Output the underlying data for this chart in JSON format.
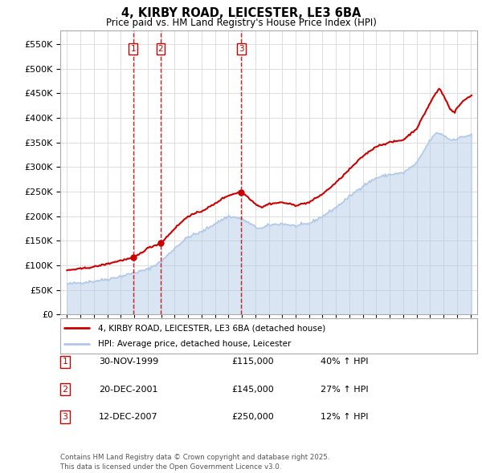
{
  "title": "4, KIRBY ROAD, LEICESTER, LE3 6BA",
  "subtitle": "Price paid vs. HM Land Registry's House Price Index (HPI)",
  "legend_line1": "4, KIRBY ROAD, LEICESTER, LE3 6BA (detached house)",
  "legend_line2": "HPI: Average price, detached house, Leicester",
  "footer": "Contains HM Land Registry data © Crown copyright and database right 2025.\nThis data is licensed under the Open Government Licence v3.0.",
  "transactions": [
    {
      "label": "1",
      "date": "30-NOV-1999",
      "price": 115000,
      "hpi_change": "40% ↑ HPI",
      "x_year": 1999.92
    },
    {
      "label": "2",
      "date": "20-DEC-2001",
      "price": 145000,
      "hpi_change": "27% ↑ HPI",
      "x_year": 2001.97
    },
    {
      "label": "3",
      "date": "12-DEC-2007",
      "price": 250000,
      "hpi_change": "12% ↑ HPI",
      "x_year": 2007.95
    }
  ],
  "hpi_color": "#aec6e8",
  "price_color": "#cc0000",
  "vline_color": "#cc0000",
  "background_color": "#ffffff",
  "grid_color": "#dddddd",
  "ylim": [
    0,
    577000
  ],
  "yticks": [
    0,
    50000,
    100000,
    150000,
    200000,
    250000,
    300000,
    350000,
    400000,
    450000,
    500000,
    550000
  ],
  "xlim_start": 1994.5,
  "xlim_end": 2025.5,
  "hpi_anchors": [
    [
      1995.0,
      62000
    ],
    [
      1996.0,
      65000
    ],
    [
      1997.0,
      68000
    ],
    [
      1998.0,
      72000
    ],
    [
      1999.0,
      78000
    ],
    [
      2000.0,
      85000
    ],
    [
      2001.0,
      92000
    ],
    [
      2002.0,
      108000
    ],
    [
      2003.0,
      135000
    ],
    [
      2004.0,
      158000
    ],
    [
      2005.0,
      168000
    ],
    [
      2006.0,
      185000
    ],
    [
      2007.0,
      200000
    ],
    [
      2008.0,
      195000
    ],
    [
      2009.0,
      178000
    ],
    [
      2009.5,
      175000
    ],
    [
      2010.0,
      182000
    ],
    [
      2011.0,
      185000
    ],
    [
      2012.0,
      180000
    ],
    [
      2013.0,
      185000
    ],
    [
      2014.0,
      200000
    ],
    [
      2015.0,
      218000
    ],
    [
      2016.0,
      240000
    ],
    [
      2017.0,
      262000
    ],
    [
      2018.0,
      278000
    ],
    [
      2019.0,
      285000
    ],
    [
      2020.0,
      288000
    ],
    [
      2021.0,
      308000
    ],
    [
      2022.0,
      355000
    ],
    [
      2022.5,
      370000
    ],
    [
      2023.0,
      365000
    ],
    [
      2023.5,
      355000
    ],
    [
      2024.0,
      358000
    ],
    [
      2024.5,
      362000
    ],
    [
      2025.0,
      365000
    ]
  ],
  "price_anchors": [
    [
      1995.0,
      90000
    ],
    [
      1996.0,
      93000
    ],
    [
      1997.0,
      97000
    ],
    [
      1998.0,
      103000
    ],
    [
      1999.0,
      110000
    ],
    [
      1999.92,
      115000
    ],
    [
      2000.5,
      125000
    ],
    [
      2001.0,
      135000
    ],
    [
      2001.97,
      145000
    ],
    [
      2002.5,
      160000
    ],
    [
      2003.0,
      175000
    ],
    [
      2004.0,
      200000
    ],
    [
      2005.0,
      210000
    ],
    [
      2006.0,
      225000
    ],
    [
      2006.5,
      235000
    ],
    [
      2007.0,
      242000
    ],
    [
      2007.95,
      250000
    ],
    [
      2008.5,
      238000
    ],
    [
      2009.0,
      225000
    ],
    [
      2009.5,
      218000
    ],
    [
      2010.0,
      225000
    ],
    [
      2011.0,
      228000
    ],
    [
      2012.0,
      222000
    ],
    [
      2013.0,
      228000
    ],
    [
      2014.0,
      245000
    ],
    [
      2015.0,
      268000
    ],
    [
      2016.0,
      295000
    ],
    [
      2017.0,
      322000
    ],
    [
      2018.0,
      342000
    ],
    [
      2019.0,
      350000
    ],
    [
      2020.0,
      355000
    ],
    [
      2021.0,
      378000
    ],
    [
      2022.0,
      430000
    ],
    [
      2022.3,
      445000
    ],
    [
      2022.7,
      460000
    ],
    [
      2023.0,
      445000
    ],
    [
      2023.5,
      418000
    ],
    [
      2023.8,
      410000
    ],
    [
      2024.0,
      420000
    ],
    [
      2024.5,
      435000
    ],
    [
      2025.0,
      445000
    ]
  ]
}
